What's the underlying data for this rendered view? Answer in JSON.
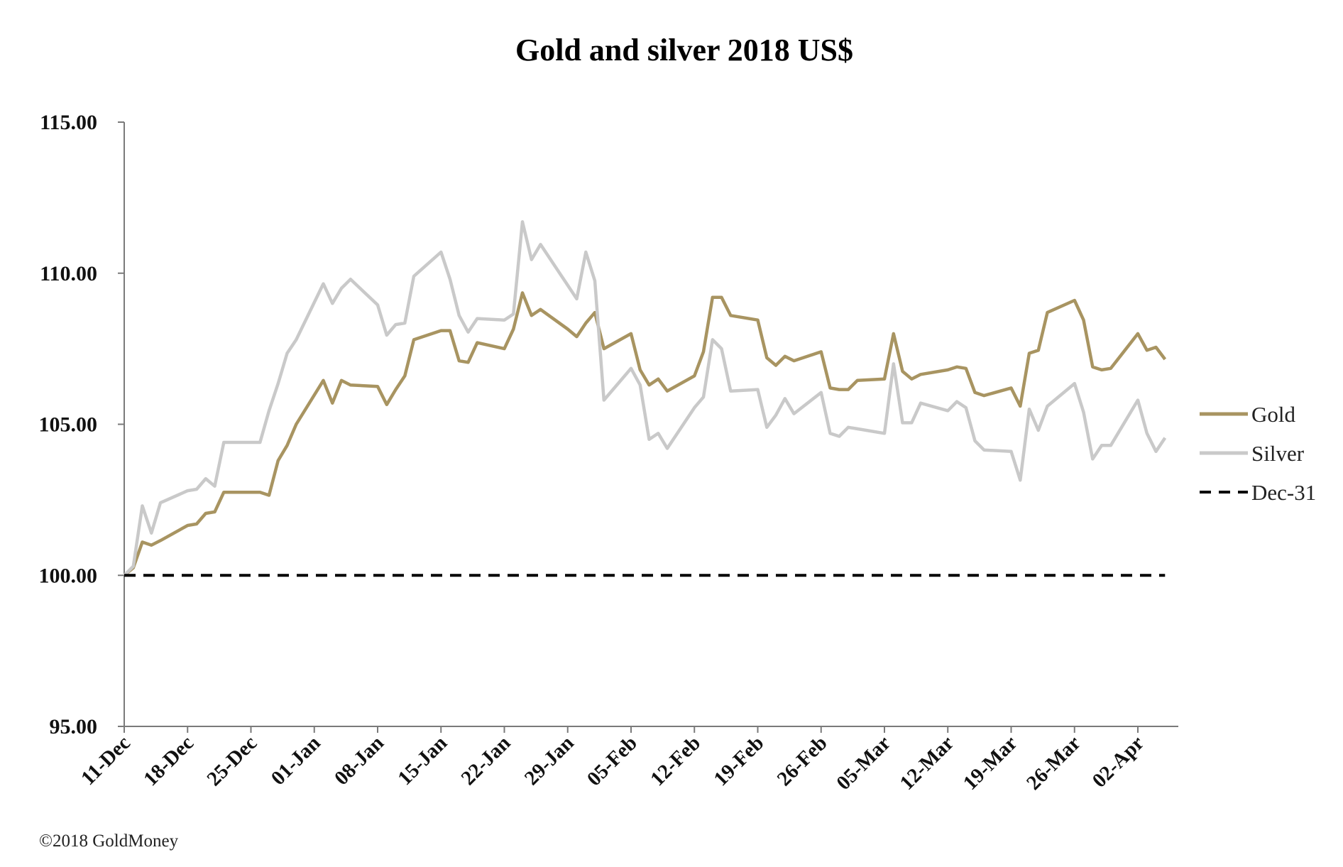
{
  "chart_data": {
    "type": "line",
    "title": "Gold and silver 2018  US$",
    "xlabel": "",
    "ylabel": "",
    "ylim": [
      95,
      115
    ],
    "yticks": [
      "95.00",
      "100.00",
      "105.00",
      "110.00",
      "115.00"
    ],
    "x_range": [
      "2017-12-11",
      "2018-04-05"
    ],
    "xticks": [
      "11-Dec",
      "18-Dec",
      "25-Dec",
      "01-Jan",
      "08-Jan",
      "15-Jan",
      "22-Jan",
      "29-Jan",
      "05-Feb",
      "12-Feb",
      "19-Feb",
      "26-Feb",
      "05-Mar",
      "12-Mar",
      "19-Mar",
      "26-Mar",
      "02-Apr"
    ],
    "grid": false,
    "legend_position": "right",
    "series": [
      {
        "name": "Gold",
        "color": "#A89461",
        "style": "solid",
        "points": [
          [
            "2017-12-11",
            100.0
          ],
          [
            "2017-12-12",
            100.25
          ],
          [
            "2017-12-13",
            101.1
          ],
          [
            "2017-12-14",
            101.0
          ],
          [
            "2017-12-15",
            101.15
          ],
          [
            "2017-12-18",
            101.65
          ],
          [
            "2017-12-19",
            101.7
          ],
          [
            "2017-12-20",
            102.05
          ],
          [
            "2017-12-21",
            102.1
          ],
          [
            "2017-12-22",
            102.75
          ],
          [
            "2017-12-26",
            102.75
          ],
          [
            "2017-12-27",
            102.65
          ],
          [
            "2017-12-28",
            103.8
          ],
          [
            "2017-12-29",
            104.3
          ],
          [
            "2017-12-30",
            105.0
          ],
          [
            "2018-01-02",
            106.45
          ],
          [
            "2018-01-03",
            105.7
          ],
          [
            "2018-01-04",
            106.45
          ],
          [
            "2018-01-05",
            106.3
          ],
          [
            "2018-01-08",
            106.25
          ],
          [
            "2018-01-09",
            105.65
          ],
          [
            "2018-01-10",
            106.15
          ],
          [
            "2018-01-11",
            106.6
          ],
          [
            "2018-01-12",
            107.8
          ],
          [
            "2018-01-15",
            108.1
          ],
          [
            "2018-01-16",
            108.1
          ],
          [
            "2018-01-17",
            107.1
          ],
          [
            "2018-01-18",
            107.05
          ],
          [
            "2018-01-19",
            107.7
          ],
          [
            "2018-01-22",
            107.5
          ],
          [
            "2018-01-23",
            108.15
          ],
          [
            "2018-01-24",
            109.35
          ],
          [
            "2018-01-25",
            108.6
          ],
          [
            "2018-01-26",
            108.8
          ],
          [
            "2018-01-29",
            108.15
          ],
          [
            "2018-01-30",
            107.9
          ],
          [
            "2018-01-31",
            108.35
          ],
          [
            "2018-02-01",
            108.7
          ],
          [
            "2018-02-02",
            107.5
          ],
          [
            "2018-02-05",
            108.0
          ],
          [
            "2018-02-06",
            106.8
          ],
          [
            "2018-02-07",
            106.3
          ],
          [
            "2018-02-08",
            106.5
          ],
          [
            "2018-02-09",
            106.1
          ],
          [
            "2018-02-12",
            106.6
          ],
          [
            "2018-02-13",
            107.4
          ],
          [
            "2018-02-14",
            109.2
          ],
          [
            "2018-02-15",
            109.2
          ],
          [
            "2018-02-16",
            108.6
          ],
          [
            "2018-02-19",
            108.45
          ],
          [
            "2018-02-20",
            107.2
          ],
          [
            "2018-02-21",
            106.95
          ],
          [
            "2018-02-22",
            107.25
          ],
          [
            "2018-02-23",
            107.1
          ],
          [
            "2018-02-26",
            107.4
          ],
          [
            "2018-02-27",
            106.2
          ],
          [
            "2018-02-28",
            106.15
          ],
          [
            "2018-03-01",
            106.15
          ],
          [
            "2018-03-02",
            106.45
          ],
          [
            "2018-03-05",
            106.5
          ],
          [
            "2018-03-06",
            108.0
          ],
          [
            "2018-03-07",
            106.75
          ],
          [
            "2018-03-08",
            106.5
          ],
          [
            "2018-03-09",
            106.65
          ],
          [
            "2018-03-12",
            106.8
          ],
          [
            "2018-03-13",
            106.9
          ],
          [
            "2018-03-14",
            106.85
          ],
          [
            "2018-03-15",
            106.05
          ],
          [
            "2018-03-16",
            105.95
          ],
          [
            "2018-03-19",
            106.2
          ],
          [
            "2018-03-20",
            105.6
          ],
          [
            "2018-03-21",
            107.35
          ],
          [
            "2018-03-22",
            107.45
          ],
          [
            "2018-03-23",
            108.7
          ],
          [
            "2018-03-26",
            109.1
          ],
          [
            "2018-03-27",
            108.45
          ],
          [
            "2018-03-28",
            106.9
          ],
          [
            "2018-03-29",
            106.8
          ],
          [
            "2018-03-30",
            106.85
          ],
          [
            "2018-04-02",
            108.0
          ],
          [
            "2018-04-03",
            107.45
          ],
          [
            "2018-04-04",
            107.55
          ],
          [
            "2018-04-05",
            107.15
          ]
        ]
      },
      {
        "name": "Silver",
        "color": "#C9C9C9",
        "style": "solid",
        "points": [
          [
            "2017-12-11",
            100.0
          ],
          [
            "2017-12-12",
            100.3
          ],
          [
            "2017-12-13",
            102.3
          ],
          [
            "2017-12-14",
            101.4
          ],
          [
            "2017-12-15",
            102.4
          ],
          [
            "2017-12-18",
            102.8
          ],
          [
            "2017-12-19",
            102.85
          ],
          [
            "2017-12-20",
            103.2
          ],
          [
            "2017-12-21",
            102.95
          ],
          [
            "2017-12-22",
            104.4
          ],
          [
            "2017-12-26",
            104.4
          ],
          [
            "2017-12-27",
            105.45
          ],
          [
            "2017-12-28",
            106.35
          ],
          [
            "2017-12-29",
            107.35
          ],
          [
            "2017-12-30",
            107.8
          ],
          [
            "2018-01-02",
            109.65
          ],
          [
            "2018-01-03",
            109.0
          ],
          [
            "2018-01-04",
            109.5
          ],
          [
            "2018-01-05",
            109.8
          ],
          [
            "2018-01-08",
            108.95
          ],
          [
            "2018-01-09",
            107.95
          ],
          [
            "2018-01-10",
            108.3
          ],
          [
            "2018-01-11",
            108.35
          ],
          [
            "2018-01-12",
            109.9
          ],
          [
            "2018-01-15",
            110.7
          ],
          [
            "2018-01-16",
            109.8
          ],
          [
            "2018-01-17",
            108.6
          ],
          [
            "2018-01-18",
            108.05
          ],
          [
            "2018-01-19",
            108.5
          ],
          [
            "2018-01-22",
            108.45
          ],
          [
            "2018-01-23",
            108.65
          ],
          [
            "2018-01-24",
            111.7
          ],
          [
            "2018-01-25",
            110.45
          ],
          [
            "2018-01-26",
            110.95
          ],
          [
            "2018-01-29",
            109.6
          ],
          [
            "2018-01-30",
            109.15
          ],
          [
            "2018-01-31",
            110.7
          ],
          [
            "2018-02-01",
            109.75
          ],
          [
            "2018-02-02",
            105.8
          ],
          [
            "2018-02-05",
            106.85
          ],
          [
            "2018-02-06",
            106.3
          ],
          [
            "2018-02-07",
            104.5
          ],
          [
            "2018-02-08",
            104.7
          ],
          [
            "2018-02-09",
            104.2
          ],
          [
            "2018-02-12",
            105.55
          ],
          [
            "2018-02-13",
            105.9
          ],
          [
            "2018-02-14",
            107.8
          ],
          [
            "2018-02-15",
            107.5
          ],
          [
            "2018-02-16",
            106.1
          ],
          [
            "2018-02-19",
            106.15
          ],
          [
            "2018-02-20",
            104.9
          ],
          [
            "2018-02-21",
            105.3
          ],
          [
            "2018-02-22",
            105.85
          ],
          [
            "2018-02-23",
            105.35
          ],
          [
            "2018-02-26",
            106.05
          ],
          [
            "2018-02-27",
            104.7
          ],
          [
            "2018-02-28",
            104.6
          ],
          [
            "2018-03-01",
            104.9
          ],
          [
            "2018-03-02",
            104.85
          ],
          [
            "2018-03-05",
            104.7
          ],
          [
            "2018-03-06",
            107.0
          ],
          [
            "2018-03-07",
            105.05
          ],
          [
            "2018-03-08",
            105.05
          ],
          [
            "2018-03-09",
            105.7
          ],
          [
            "2018-03-12",
            105.45
          ],
          [
            "2018-03-13",
            105.75
          ],
          [
            "2018-03-14",
            105.55
          ],
          [
            "2018-03-15",
            104.45
          ],
          [
            "2018-03-16",
            104.15
          ],
          [
            "2018-03-19",
            104.1
          ],
          [
            "2018-03-20",
            103.15
          ],
          [
            "2018-03-21",
            105.5
          ],
          [
            "2018-03-22",
            104.8
          ],
          [
            "2018-03-23",
            105.6
          ],
          [
            "2018-03-26",
            106.35
          ],
          [
            "2018-03-27",
            105.4
          ],
          [
            "2018-03-28",
            103.85
          ],
          [
            "2018-03-29",
            104.3
          ],
          [
            "2018-03-30",
            104.3
          ],
          [
            "2018-04-02",
            105.8
          ],
          [
            "2018-04-03",
            104.7
          ],
          [
            "2018-04-04",
            104.1
          ],
          [
            "2018-04-05",
            104.55
          ]
        ]
      },
      {
        "name": "Dec-31",
        "color": "#000000",
        "style": "dashed",
        "points": [
          [
            "2017-12-11",
            100.0
          ],
          [
            "2018-04-05",
            100.0
          ]
        ]
      }
    ]
  },
  "footer": {
    "copyright": "©2018 GoldMoney"
  }
}
